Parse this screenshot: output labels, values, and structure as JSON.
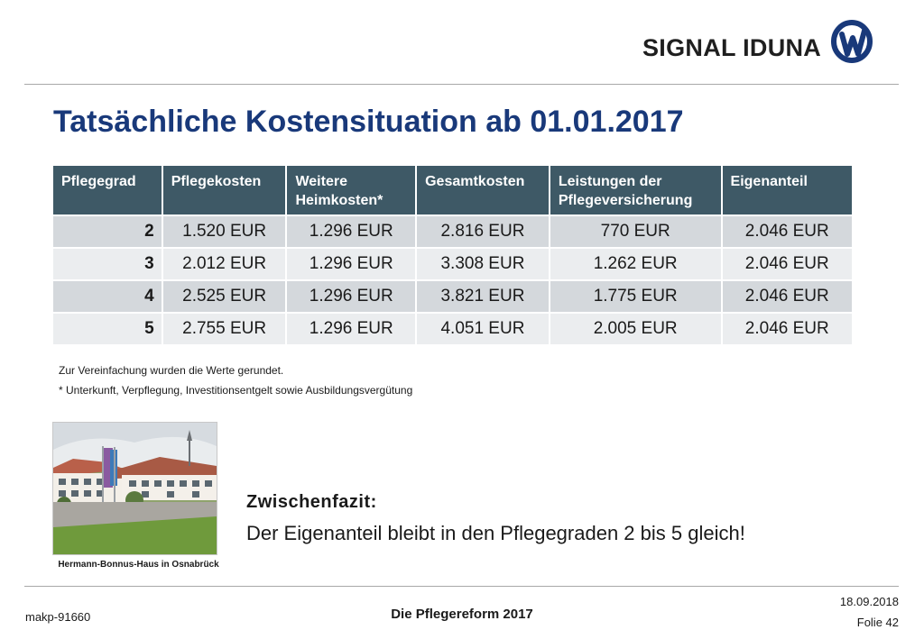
{
  "header": {
    "brand_name": "SIGNAL IDUNA",
    "logo_icon": "signal-iduna-logo",
    "brand_color": "#19397a"
  },
  "title": "Tatsächliche Kostensituation ab 01.01.2017",
  "table": {
    "columns": [
      "Pflegegrad",
      "Pflegekosten",
      "Weitere Heimkosten*",
      "Gesamtkosten",
      "Leistungen der Pflegeversicherung",
      "Eigenanteil"
    ],
    "rows": [
      [
        "2",
        "1.520 EUR",
        "1.296 EUR",
        "2.816 EUR",
        "770 EUR",
        "2.046 EUR"
      ],
      [
        "3",
        "2.012 EUR",
        "1.296 EUR",
        "3.308 EUR",
        "1.262 EUR",
        "2.046 EUR"
      ],
      [
        "4",
        "2.525 EUR",
        "1.296 EUR",
        "3.821 EUR",
        "1.775 EUR",
        "2.046 EUR"
      ],
      [
        "5",
        "2.755 EUR",
        "1.296 EUR",
        "4.051 EUR",
        "2.005 EUR",
        "2.046 EUR"
      ]
    ],
    "header_color": "#3e5966"
  },
  "notes": {
    "rounding": "Zur Vereinfachung wurden die Werte gerundet.",
    "footnote": "* Unterkunft, Verpflegung, Investitionsentgelt sowie Ausbildungsvergütung"
  },
  "photo": {
    "caption": "Hermann-Bonnus-Haus in Osnabrück"
  },
  "interim": {
    "heading": "Zwischenfazit:",
    "text": "Der Eigenanteil bleibt in den Pflegegraden 2 bis 5 gleich!"
  },
  "footer": {
    "code": "makp-91660",
    "title": "Die Pflegereform 2017",
    "date": "18.09.2018",
    "slide": "Folie 42"
  }
}
